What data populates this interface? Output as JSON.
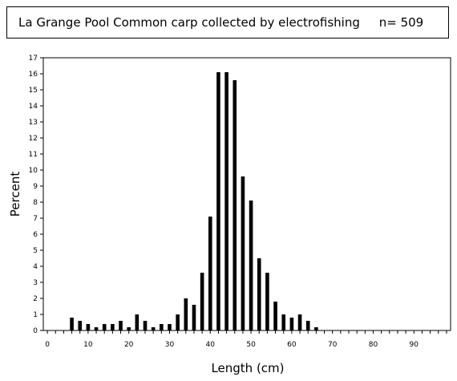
{
  "chart_data": {
    "type": "bar",
    "title": "La Grange Pool Common carp collected by electrofishing     n= 509",
    "xlabel": "Length (cm)",
    "ylabel": "Percent",
    "xlim": [
      -1,
      99
    ],
    "ylim": [
      0,
      17
    ],
    "x_tick_labels": [
      "0",
      "10",
      "20",
      "30",
      "40",
      "50",
      "60",
      "70",
      "80",
      "90"
    ],
    "y_tick_labels": [
      "0",
      "1",
      "2",
      "3",
      "4",
      "5",
      "6",
      "7",
      "8",
      "9",
      "10",
      "11",
      "12",
      "13",
      "14",
      "15",
      "16",
      "17"
    ],
    "grid": false,
    "legend": "none",
    "bar_color": "#000000",
    "x": [
      6,
      8,
      10,
      12,
      14,
      16,
      18,
      20,
      22,
      24,
      26,
      28,
      30,
      32,
      34,
      36,
      38,
      40,
      42,
      44,
      46,
      48,
      50,
      52,
      54,
      56,
      58,
      60,
      62,
      64,
      66
    ],
    "values": [
      0.8,
      0.6,
      0.4,
      0.2,
      0.4,
      0.4,
      0.6,
      0.2,
      1.0,
      0.6,
      0.2,
      0.4,
      0.4,
      1.0,
      2.0,
      1.6,
      3.6,
      7.1,
      16.1,
      16.1,
      15.6,
      9.6,
      8.1,
      4.5,
      3.6,
      1.8,
      1.0,
      0.8,
      1.0,
      0.6,
      0.2
    ]
  }
}
